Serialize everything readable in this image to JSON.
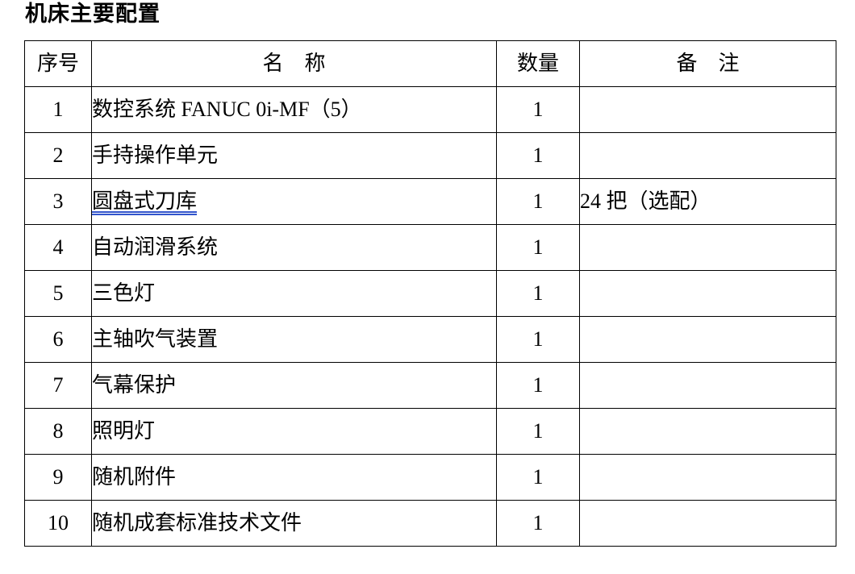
{
  "document": {
    "title": "机床主要配置"
  },
  "table": {
    "headers": {
      "no": "序号",
      "name": "名　称",
      "qty": "数量",
      "remark": "备　注"
    },
    "rows": [
      {
        "no": "1",
        "name": "数控系统 FANUC 0i-MF（5）",
        "qty": "1",
        "remark": ""
      },
      {
        "no": "2",
        "name": "手持操作单元",
        "qty": "1",
        "remark": ""
      },
      {
        "no": "3",
        "name": "圆盘式刀库",
        "qty": "1",
        "remark": "24 把（选配）",
        "name_underlined": true
      },
      {
        "no": "4",
        "name": "自动润滑系统",
        "qty": "1",
        "remark": ""
      },
      {
        "no": "5",
        "name": "三色灯",
        "qty": "1",
        "remark": ""
      },
      {
        "no": "6",
        "name": "主轴吹气装置",
        "qty": "1",
        "remark": ""
      },
      {
        "no": "7",
        "name": "气幕保护",
        "qty": "1",
        "remark": ""
      },
      {
        "no": "8",
        "name": "照明灯",
        "qty": "1",
        "remark": ""
      },
      {
        "no": "9",
        "name": "随机附件",
        "qty": "1",
        "remark": ""
      },
      {
        "no": "10",
        "name": "随机成套标准技术文件",
        "qty": "1",
        "remark": ""
      }
    ],
    "underline_color": "#3355cc",
    "border_color": "#000000"
  }
}
